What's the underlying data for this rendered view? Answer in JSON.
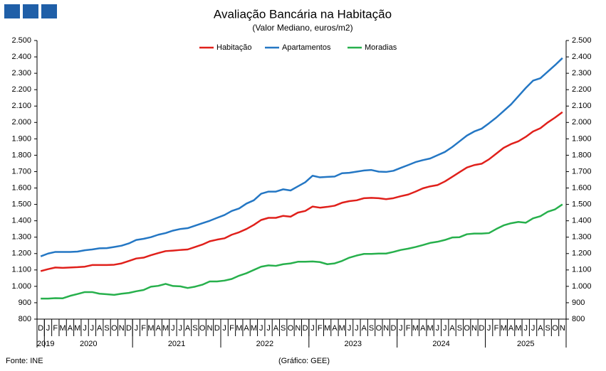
{
  "chart_data": {
    "type": "line",
    "title": "Avaliação Bancária na Habitação",
    "subtitle": "(Valor Mediano, euros/m2)",
    "source": "Fonte: INE",
    "credit": "(Gráfico: GEE)",
    "categories": [
      "D",
      "J",
      "F",
      "M",
      "A",
      "M",
      "J",
      "J",
      "A",
      "S",
      "O",
      "N",
      "D",
      "J",
      "F",
      "M",
      "A",
      "M",
      "J",
      "J",
      "A",
      "S",
      "O",
      "N",
      "D",
      "J",
      "F",
      "M",
      "A",
      "M",
      "J",
      "J",
      "A",
      "S",
      "O",
      "N",
      "D",
      "J",
      "F",
      "M",
      "A",
      "M",
      "J",
      "J",
      "A",
      "S",
      "O",
      "N",
      "D",
      "J",
      "F",
      "M",
      "A",
      "M",
      "J",
      "J",
      "A",
      "S",
      "O",
      "N",
      "D",
      "J",
      "F",
      "M",
      "A",
      "M",
      "J",
      "J",
      "A",
      "S",
      "O",
      "N"
    ],
    "year_groups": [
      {
        "label": "2019",
        "count": 1
      },
      {
        "label": "2020",
        "count": 12
      },
      {
        "label": "2021",
        "count": 12
      },
      {
        "label": "2022",
        "count": 12
      },
      {
        "label": "2023",
        "count": 12
      },
      {
        "label": "2024",
        "count": 12
      },
      {
        "label": "2025",
        "count": 11
      }
    ],
    "series": [
      {
        "name": "Habitação",
        "color": "#e0201b",
        "values": [
          1093,
          1105,
          1115,
          1113,
          1115,
          1117,
          1120,
          1130,
          1130,
          1130,
          1132,
          1140,
          1155,
          1170,
          1175,
          1190,
          1203,
          1215,
          1218,
          1222,
          1225,
          1240,
          1255,
          1275,
          1285,
          1293,
          1315,
          1330,
          1350,
          1375,
          1405,
          1418,
          1418,
          1430,
          1425,
          1450,
          1460,
          1487,
          1480,
          1485,
          1492,
          1510,
          1520,
          1525,
          1538,
          1540,
          1538,
          1532,
          1538,
          1550,
          1560,
          1578,
          1598,
          1610,
          1618,
          1640,
          1668,
          1697,
          1725,
          1740,
          1748,
          1775,
          1810,
          1845,
          1868,
          1885,
          1912,
          1945,
          1965,
          2000,
          2030,
          2063
        ]
      },
      {
        "name": "Apartamentos",
        "color": "#2477c4",
        "values": [
          1183,
          1200,
          1210,
          1210,
          1210,
          1212,
          1220,
          1225,
          1232,
          1233,
          1240,
          1248,
          1262,
          1283,
          1290,
          1300,
          1315,
          1325,
          1340,
          1350,
          1355,
          1370,
          1385,
          1400,
          1418,
          1435,
          1460,
          1475,
          1505,
          1525,
          1565,
          1578,
          1578,
          1592,
          1585,
          1610,
          1635,
          1675,
          1665,
          1668,
          1670,
          1690,
          1693,
          1700,
          1707,
          1710,
          1700,
          1698,
          1705,
          1723,
          1740,
          1758,
          1770,
          1780,
          1800,
          1820,
          1850,
          1885,
          1920,
          1945,
          1962,
          1995,
          2030,
          2070,
          2110,
          2160,
          2210,
          2255,
          2270,
          2310,
          2350,
          2393
        ]
      },
      {
        "name": "Moradias",
        "color": "#27b04c",
        "values": [
          925,
          925,
          928,
          927,
          942,
          953,
          965,
          965,
          955,
          952,
          948,
          955,
          960,
          970,
          978,
          998,
          1003,
          1015,
          1002,
          1000,
          990,
          998,
          1010,
          1030,
          1030,
          1035,
          1045,
          1065,
          1080,
          1100,
          1120,
          1128,
          1125,
          1135,
          1140,
          1150,
          1150,
          1152,
          1148,
          1135,
          1140,
          1155,
          1175,
          1188,
          1198,
          1198,
          1200,
          1200,
          1210,
          1222,
          1230,
          1240,
          1252,
          1265,
          1272,
          1283,
          1298,
          1300,
          1318,
          1322,
          1322,
          1325,
          1350,
          1372,
          1385,
          1393,
          1388,
          1415,
          1428,
          1455,
          1470,
          1500
        ]
      }
    ],
    "ylim": [
      800,
      2500
    ],
    "yticks": [
      800,
      900,
      {
        "value": 1000,
        "label": "1.000"
      },
      {
        "value": 1100,
        "label": "1.100"
      },
      {
        "value": 1200,
        "label": "1.200"
      },
      {
        "value": 1300,
        "label": "1.300"
      },
      {
        "value": 1400,
        "label": "1.400"
      },
      {
        "value": 1500,
        "label": "1.500"
      },
      {
        "value": 1600,
        "label": "1.600"
      },
      {
        "value": 1700,
        "label": "1.700"
      },
      {
        "value": 1800,
        "label": "1.800"
      },
      {
        "value": 1900,
        "label": "1.900"
      },
      {
        "value": 2000,
        "label": "2.000"
      },
      {
        "value": 2100,
        "label": "2.100"
      },
      {
        "value": 2200,
        "label": "2.200"
      },
      {
        "value": 2300,
        "label": "2.300"
      },
      {
        "value": 2400,
        "label": "2.400"
      },
      {
        "value": 2500,
        "label": "2.500"
      }
    ],
    "grid": false
  }
}
